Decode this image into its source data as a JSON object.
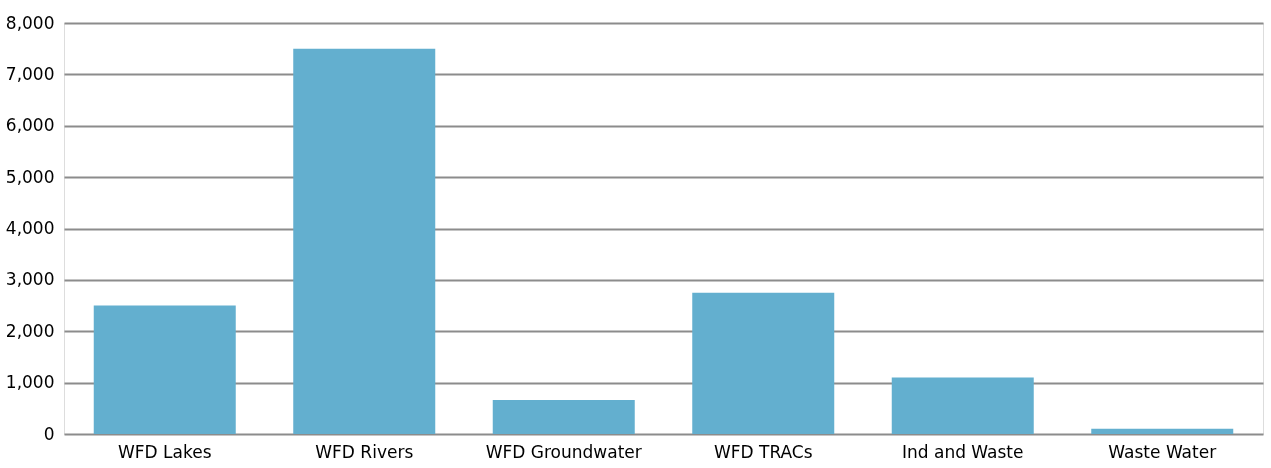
{
  "chart_data": {
    "type": "bar",
    "categories": [
      "WFD Lakes",
      "WFD Rivers",
      "WFD Groundwater",
      "WFD TRACs",
      "Ind and Waste",
      "Waste Water"
    ],
    "values": [
      2500,
      7500,
      660,
      2750,
      1100,
      100
    ],
    "color": "#63afcf",
    "ylim": [
      0,
      8000
    ],
    "yticks": [
      {
        "value": 0,
        "label": "0"
      },
      {
        "value": 1000,
        "label": "1,000"
      },
      {
        "value": 2000,
        "label": "2,000"
      },
      {
        "value": 3000,
        "label": "3,000"
      },
      {
        "value": 4000,
        "label": "4,000"
      },
      {
        "value": 5000,
        "label": "5,000"
      },
      {
        "value": 6000,
        "label": "6,000"
      },
      {
        "value": 7000,
        "label": "7,000"
      },
      {
        "value": 8000,
        "label": "8,000"
      }
    ],
    "grid": "y"
  }
}
